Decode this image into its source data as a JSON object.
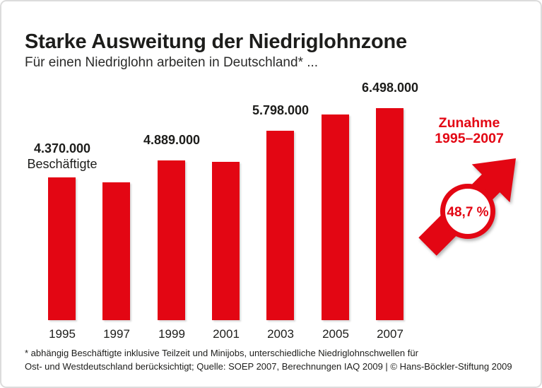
{
  "card": {
    "title": "Starke Ausweitung der Niedriglohnzone",
    "subtitle": "Für einen Niedriglohn arbeiten in Deutschland* ...",
    "footnote_line1": "* abhängig Beschäftigte inklusive Teilzeit und Minijobs, unterschiedliche Niedriglohnschwellen für",
    "footnote_line2": "Ost- und Westdeutschland berücksichtigt; Quelle: SOEP 2007, Berechnungen IAQ 2009 | © Hans-Böckler-Stiftung 2009"
  },
  "annotation": {
    "label_line1": "Zunahme",
    "label_line2": "1995–2007",
    "badge_value": "48,7 %"
  },
  "colors": {
    "accent_red": "#e30613",
    "text_dark": "#1d1d1b",
    "card_border": "#dcdcdc"
  },
  "chart_data": {
    "type": "bar",
    "title": "Starke Ausweitung der Niedriglohnzone",
    "subtitle": "Für einen Niedriglohn arbeiten in Deutschland* ...",
    "categories": [
      "1995",
      "1997",
      "1999",
      "2001",
      "2003",
      "2005",
      "2007"
    ],
    "values": [
      4370000,
      4220000,
      4889000,
      4850000,
      5798000,
      6300000,
      6498000
    ],
    "bar_labels": [
      "4.370.000",
      "",
      "4.889.000",
      "",
      "5.798.000",
      "",
      "6.498.000"
    ],
    "unit_label": "Beschäftigte",
    "estimated_categories": [
      "1997",
      "2001",
      "2005"
    ],
    "bar_color": "#e30613",
    "xlabel": "",
    "ylabel": "",
    "ylim": [
      0,
      6700000
    ],
    "grid": false,
    "axes_visible": false,
    "legend": "none",
    "annotation": {
      "label": "Zunahme 1995–2007",
      "value": "48,7 %"
    }
  }
}
